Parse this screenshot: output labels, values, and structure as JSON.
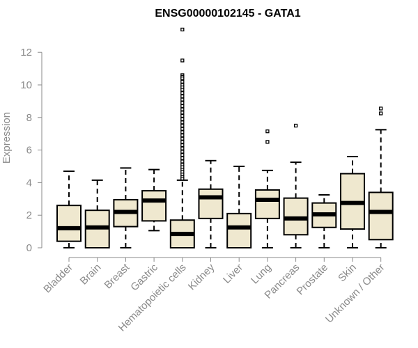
{
  "chart_data": {
    "type": "boxplot",
    "title": "ENSG00000102145 - GATA1",
    "xlabel": "",
    "ylabel": "Expression",
    "ylim": [
      0,
      13.5
    ],
    "yticks": [
      "0",
      "2",
      "4",
      "6",
      "8",
      "10",
      "12"
    ],
    "box_fill": "#efe8cf",
    "box_stroke": "#000000",
    "axis_color": "#8a8a8a",
    "categories": [
      "Bladder",
      "Brain",
      "Breast",
      "Gastric",
      "Hematopoietic cells",
      "Kidney",
      "Liver",
      "Lung",
      "Pancreas",
      "Prostate",
      "Skin",
      "Unknown / Other"
    ],
    "boxes": [
      {
        "whisker_low": 0.0,
        "q1": 0.4,
        "median": 1.2,
        "q3": 2.6,
        "whisker_high": 4.7,
        "outliers": []
      },
      {
        "whisker_low": 0.0,
        "q1": 0.0,
        "median": 1.25,
        "q3": 2.3,
        "whisker_high": 4.15,
        "outliers": []
      },
      {
        "whisker_low": 0.0,
        "q1": 1.3,
        "median": 2.2,
        "q3": 2.95,
        "whisker_high": 4.9,
        "outliers": []
      },
      {
        "whisker_low": 1.05,
        "q1": 1.65,
        "median": 2.9,
        "q3": 3.5,
        "whisker_high": 4.8,
        "outliers": []
      },
      {
        "whisker_low": 0.0,
        "q1": 0.0,
        "median": 0.85,
        "q3": 1.7,
        "whisker_high": 4.15,
        "outliers": [
          13.4,
          11.5,
          10.6,
          10.5,
          10.4,
          10.2,
          10.0,
          9.85,
          9.7,
          9.5,
          9.3,
          9.1,
          8.9,
          8.7,
          8.5,
          8.3,
          8.1,
          7.9,
          7.7,
          7.5,
          7.3,
          7.1,
          6.9,
          6.7,
          6.5,
          6.3,
          6.1,
          5.9,
          5.7,
          5.5,
          5.3,
          5.1,
          4.95,
          4.8,
          4.65,
          4.5,
          4.35,
          4.25
        ]
      },
      {
        "whisker_low": 0.0,
        "q1": 1.8,
        "median": 3.1,
        "q3": 3.6,
        "whisker_high": 5.35,
        "outliers": []
      },
      {
        "whisker_low": 0.0,
        "q1": 0.0,
        "median": 1.25,
        "q3": 2.1,
        "whisker_high": 5.0,
        "outliers": []
      },
      {
        "whisker_low": 0.0,
        "q1": 1.8,
        "median": 2.95,
        "q3": 3.55,
        "whisker_high": 4.75,
        "outliers": [
          6.5,
          7.15
        ]
      },
      {
        "whisker_low": 0.0,
        "q1": 0.8,
        "median": 1.8,
        "q3": 3.05,
        "whisker_high": 5.25,
        "outliers": [
          7.5
        ]
      },
      {
        "whisker_low": 0.0,
        "q1": 1.25,
        "median": 2.05,
        "q3": 2.75,
        "whisker_high": 3.25,
        "outliers": []
      },
      {
        "whisker_low": 0.0,
        "q1": 1.15,
        "median": 2.75,
        "q3": 4.55,
        "whisker_high": 5.6,
        "outliers": []
      },
      {
        "whisker_low": 0.0,
        "q1": 0.5,
        "median": 2.2,
        "q3": 3.4,
        "whisker_high": 7.25,
        "outliers": [
          8.25,
          8.55
        ]
      }
    ]
  }
}
